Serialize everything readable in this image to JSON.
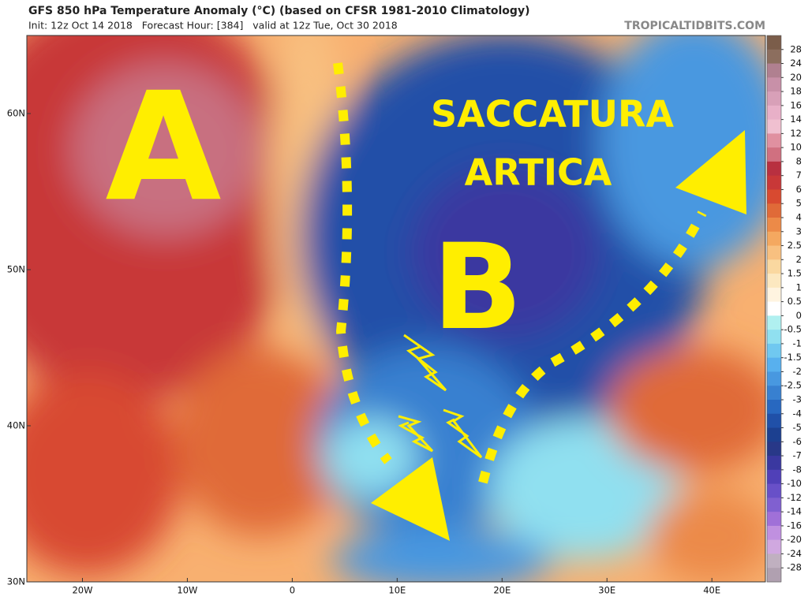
{
  "header": {
    "title": "GFS 850 hPa Temperature Anomaly (°C) (based on CFSR 1981-2010 Climatology)",
    "subtitle": "Init: 12z Oct 14 2018   Forecast Hour: [384]   valid at 12z Tue, Oct 30 2018",
    "source": "TROPICALTIDBITS.COM"
  },
  "map": {
    "xlim": [
      -25.3,
      45.1
    ],
    "ylim": [
      30,
      65
    ],
    "xticks": [
      {
        "value": -20,
        "label": "20W"
      },
      {
        "value": -10,
        "label": "10W"
      },
      0,
      {
        "value": 10,
        "label": "10E"
      },
      {
        "value": 20,
        "label": "20E"
      },
      {
        "value": 30,
        "label": "30E"
      },
      {
        "value": 40,
        "label": "40E"
      }
    ],
    "yticks": [
      {
        "value": 60,
        "label": "60N"
      },
      {
        "value": 50,
        "label": "50N"
      },
      {
        "value": 40,
        "label": "40N"
      },
      {
        "value": 30,
        "label": "30N"
      }
    ]
  },
  "colorbar": {
    "levels": [
      28,
      24,
      20,
      18,
      16,
      14,
      12,
      10,
      8,
      7,
      6,
      5,
      4,
      3,
      2.5,
      2,
      1.5,
      1,
      0.5,
      0,
      -0.5,
      -1,
      -1.5,
      -2,
      -2.5,
      -3,
      -4,
      -5,
      -6,
      -7,
      -8,
      -10,
      -12,
      -14,
      -16,
      -20,
      -24,
      -28
    ],
    "colors": [
      "#7b5d4a",
      "#8c6e5e",
      "#b08090",
      "#c890a8",
      "#d8a0b8",
      "#e8b0c8",
      "#f0c0d0",
      "#e090a0",
      "#d07080",
      "#b83040",
      "#c83838",
      "#d84a30",
      "#e06a38",
      "#ec8a48",
      "#f4a860",
      "#f8c080",
      "#fad8a0",
      "#fce8c0",
      "#fff4e0",
      "#ffffff",
      "#b0f0f0",
      "#90e0f0",
      "#70c8f0",
      "#58b0ee",
      "#4898e0",
      "#3880d0",
      "#2868c0",
      "#2050a8",
      "#1c4090",
      "#283888",
      "#3a38a0",
      "#5040b8",
      "#6850c8",
      "#8060d0",
      "#a070d8",
      "#c090e0",
      "#d0a8e0",
      "#c0b0c0",
      "#b0a0b0"
    ]
  },
  "annotations": {
    "high": "A",
    "low": "B",
    "label_line1": "SACCATURA",
    "label_line2": "ARTICA"
  }
}
